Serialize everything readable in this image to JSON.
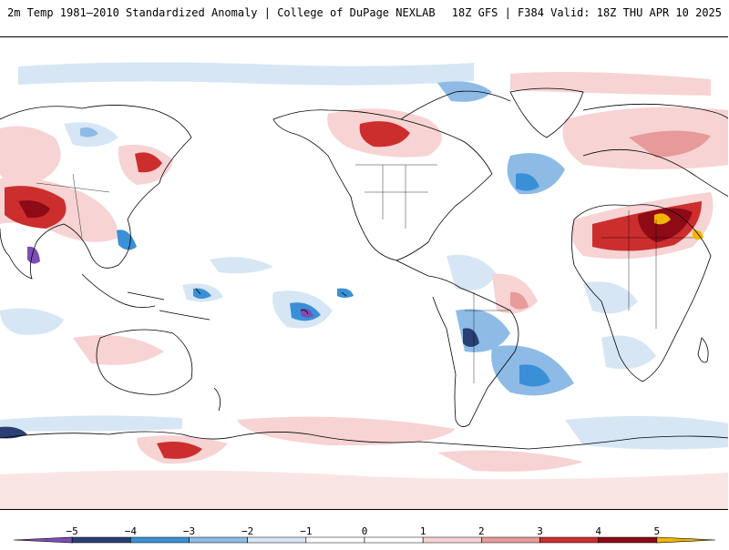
{
  "header": {
    "left_title": "2m Temp 1981–2010 Standardized Anomaly | College of DuPage NEXLAB",
    "right_title": "18Z GFS | F384 Valid: 18Z THU APR 10 2025"
  },
  "legend": {
    "ticks": [
      {
        "label": "−5",
        "value": -5
      },
      {
        "label": "−4",
        "value": -4
      },
      {
        "label": "−3",
        "value": -3
      },
      {
        "label": "−2",
        "value": -2
      },
      {
        "label": "−1",
        "value": -1
      },
      {
        "label": "0",
        "value": 0
      },
      {
        "label": "1",
        "value": 1
      },
      {
        "label": "2",
        "value": 2
      },
      {
        "label": "3",
        "value": 3
      },
      {
        "label": "4",
        "value": 4
      },
      {
        "label": "5",
        "value": 5
      }
    ],
    "bins": [
      {
        "from": -6,
        "to": -5,
        "color": "#7b4fb5"
      },
      {
        "from": -5,
        "to": -4,
        "color": "#2a3f74"
      },
      {
        "from": -4,
        "to": -3,
        "color": "#3a90d6"
      },
      {
        "from": -3,
        "to": -2,
        "color": "#8dbbe6"
      },
      {
        "from": -2,
        "to": -1,
        "color": "#d6e6f5"
      },
      {
        "from": -1,
        "to": 0,
        "color": "#ffffff"
      },
      {
        "from": 0,
        "to": 1,
        "color": "#ffffff"
      },
      {
        "from": 1,
        "to": 2,
        "color": "#f7d3d3"
      },
      {
        "from": 2,
        "to": 3,
        "color": "#e89a9a"
      },
      {
        "from": 3,
        "to": 4,
        "color": "#cc2e2e"
      },
      {
        "from": 4,
        "to": 5,
        "color": "#8e0a16"
      },
      {
        "from": 5,
        "to": 6,
        "color": "#f2b600"
      }
    ]
  },
  "colors": {
    "coastline": "#000000",
    "frame": "#000000"
  }
}
